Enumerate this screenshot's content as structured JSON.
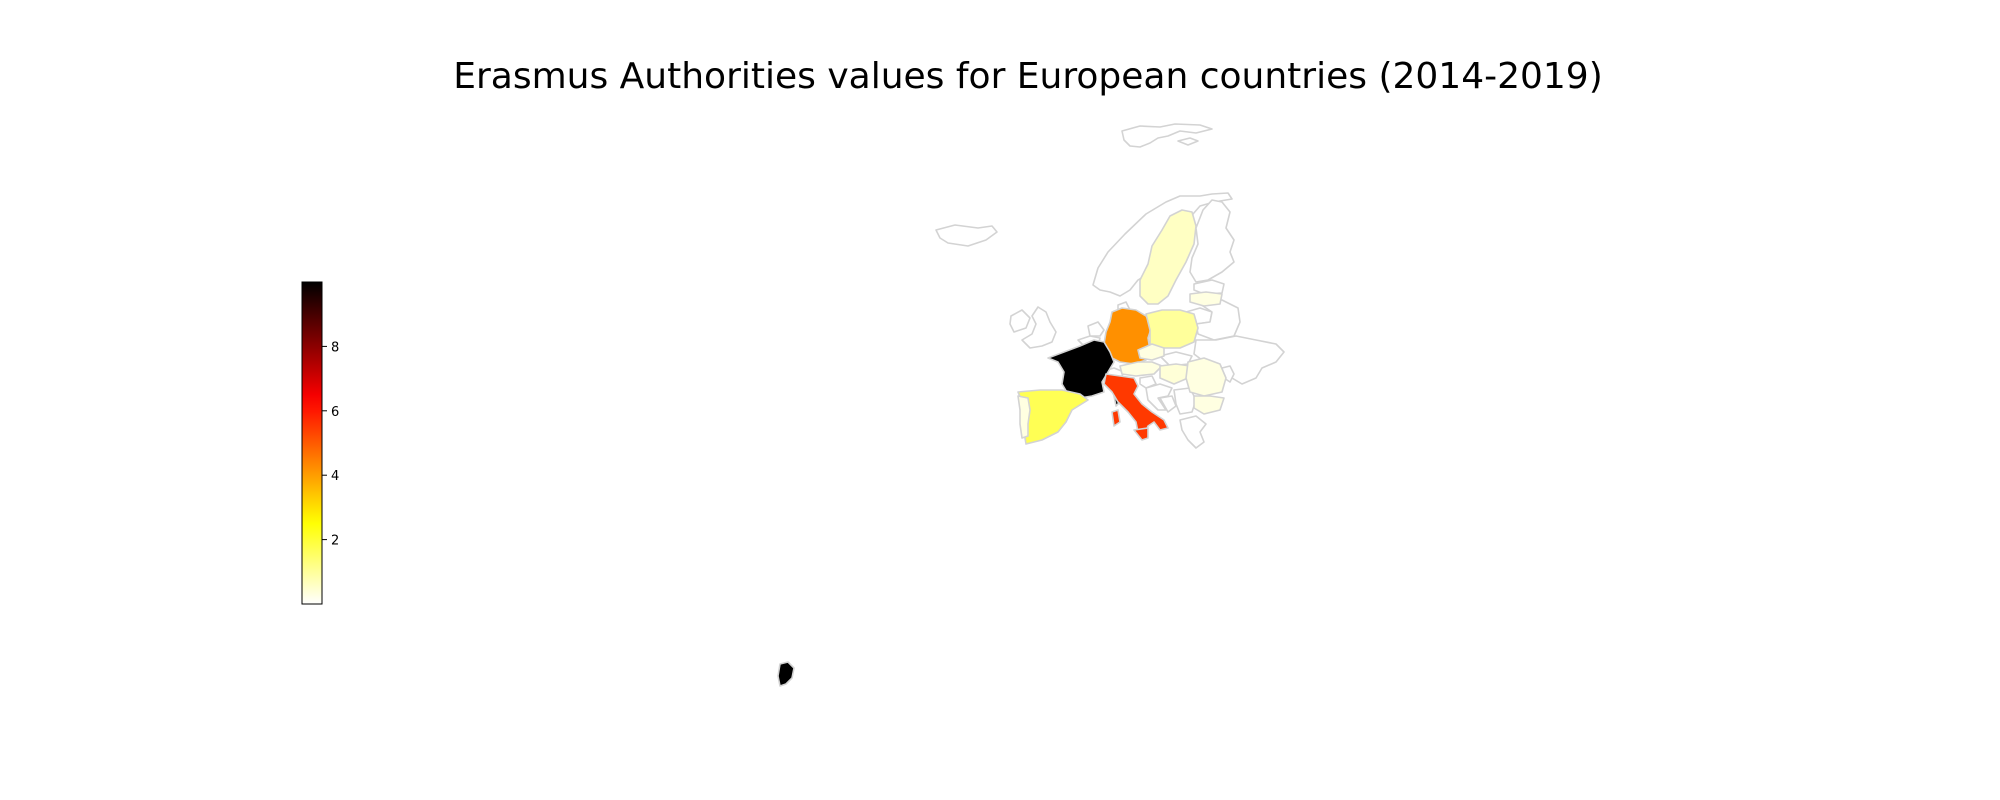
{
  "title": "Erasmus Authorities values for European countries (2014-2019)",
  "colorbar": {
    "colormap": "hot_r",
    "min": 0,
    "max": 10,
    "ticks": [
      "2",
      "4",
      "6",
      "8"
    ]
  },
  "regions": [
    {
      "id": "france",
      "value": 10
    },
    {
      "id": "french-guiana",
      "value": 10
    },
    {
      "id": "italy",
      "value": 5.5
    },
    {
      "id": "germany",
      "value": 4.2
    },
    {
      "id": "spain",
      "value": 1.7
    },
    {
      "id": "poland",
      "value": 1.0
    },
    {
      "id": "sweden",
      "value": 0.6
    },
    {
      "id": "hungary",
      "value": 0.4
    },
    {
      "id": "romania",
      "value": 0.3
    },
    {
      "id": "bulgaria",
      "value": 0.3
    },
    {
      "id": "latvia",
      "value": 0.3
    },
    {
      "id": "portugal",
      "value": 0.3
    },
    {
      "id": "austria",
      "value": 0.3
    },
    {
      "id": "czechia",
      "value": 0.3
    }
  ],
  "no_data_regions": [
    "iceland",
    "svalbard",
    "norway",
    "finland",
    "ireland",
    "uk",
    "netherlands",
    "belgium",
    "switzerland",
    "denmark",
    "lithuania",
    "estonia",
    "belarus",
    "ukraine",
    "moldova",
    "slovakia",
    "slovenia",
    "croatia",
    "bosnia",
    "serbia",
    "greece"
  ]
}
